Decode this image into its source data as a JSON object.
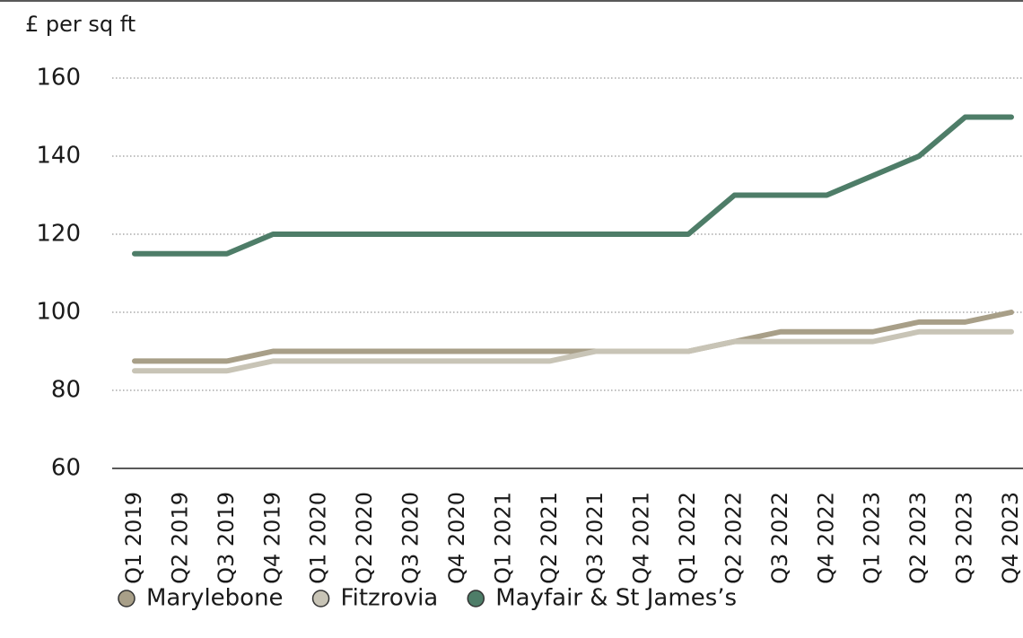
{
  "chart_data": {
    "type": "line",
    "y_label": "£ per sq ft",
    "categories": [
      "Q1 2019",
      "Q2 2019",
      "Q3 2019",
      "Q4 2019",
      "Q1 2020",
      "Q2 2020",
      "Q3 2020",
      "Q4 2020",
      "Q1 2021",
      "Q2 2021",
      "Q3 2021",
      "Q4 2021",
      "Q1 2022",
      "Q2 2022",
      "Q3 2022",
      "Q4 2022",
      "Q1 2023",
      "Q2 2023",
      "Q3 2023",
      "Q4 2023"
    ],
    "series": [
      {
        "name": "Marylebone",
        "color": "#a89f88",
        "values": [
          87.5,
          87.5,
          87.5,
          90,
          90,
          90,
          90,
          90,
          90,
          90,
          90,
          90,
          90,
          92.5,
          95,
          95,
          95,
          97.5,
          97.5,
          100
        ]
      },
      {
        "name": "Fitzrovia",
        "color": "#c8c4b6",
        "values": [
          85,
          85,
          85,
          87.5,
          87.5,
          87.5,
          87.5,
          87.5,
          87.5,
          87.5,
          90,
          90,
          90,
          92.5,
          92.5,
          92.5,
          92.5,
          95,
          95,
          95
        ]
      },
      {
        "name": "Mayfair & St James’s",
        "color": "#4e7d68",
        "values": [
          115,
          115,
          115,
          120,
          120,
          120,
          120,
          120,
          120,
          120,
          120,
          120,
          120,
          130,
          130,
          130,
          135,
          140,
          150,
          150
        ]
      }
    ],
    "ylim": [
      60,
      160
    ],
    "yticks": [
      60,
      80,
      100,
      120,
      140,
      160
    ],
    "grid": true
  }
}
